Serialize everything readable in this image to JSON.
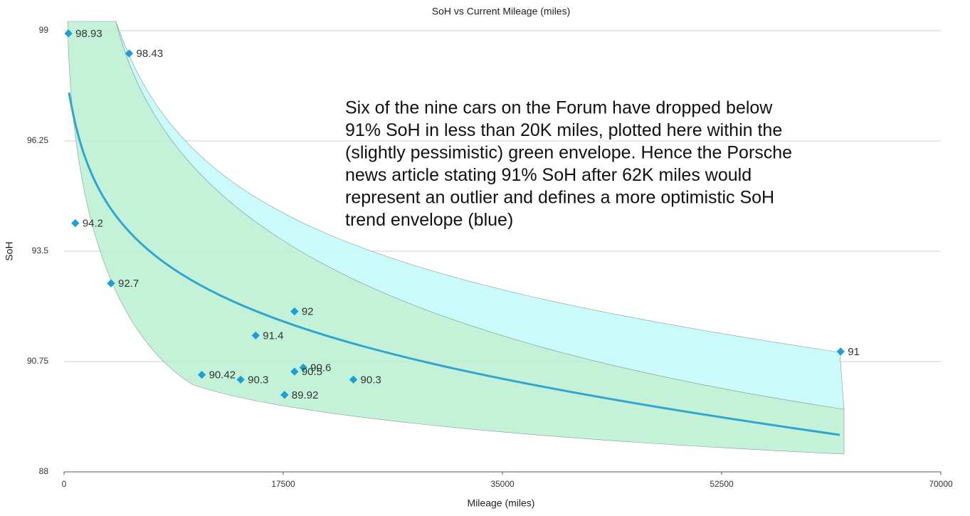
{
  "chart_data": {
    "type": "scatter",
    "title": "SoH vs Current Mileage (miles)",
    "x_label": "Mileage (miles)",
    "y_label": "SoH",
    "annotation": [
      "Six of the nine cars on the Forum have dropped below",
      "91% SoH in less than 20K miles, plotted here within the",
      "(slightly pessimistic) green envelope. Hence the Porsche",
      "news article stating 91% SoH after 62K miles would",
      "represent an outlier and defines a more optimistic SoH",
      "trend envelope (blue)"
    ],
    "x": [
      350,
      5200,
      900,
      3750,
      18400,
      15300,
      11000,
      14100,
      19100,
      18400,
      17600,
      23100,
      62000
    ],
    "values": [
      98.93,
      98.43,
      94.2,
      92.7,
      92,
      91.4,
      90.42,
      90.3,
      90.6,
      90.5,
      89.92,
      90.3,
      91
    ],
    "color": "#1a9fd6",
    "xlim": [
      0,
      70000
    ],
    "xticks": [
      0,
      17500,
      35000,
      52500,
      70000
    ],
    "ylim": [
      88,
      99
    ],
    "yticks": [
      88,
      90.75,
      93.5,
      96.25,
      99
    ],
    "grid": true
  }
}
